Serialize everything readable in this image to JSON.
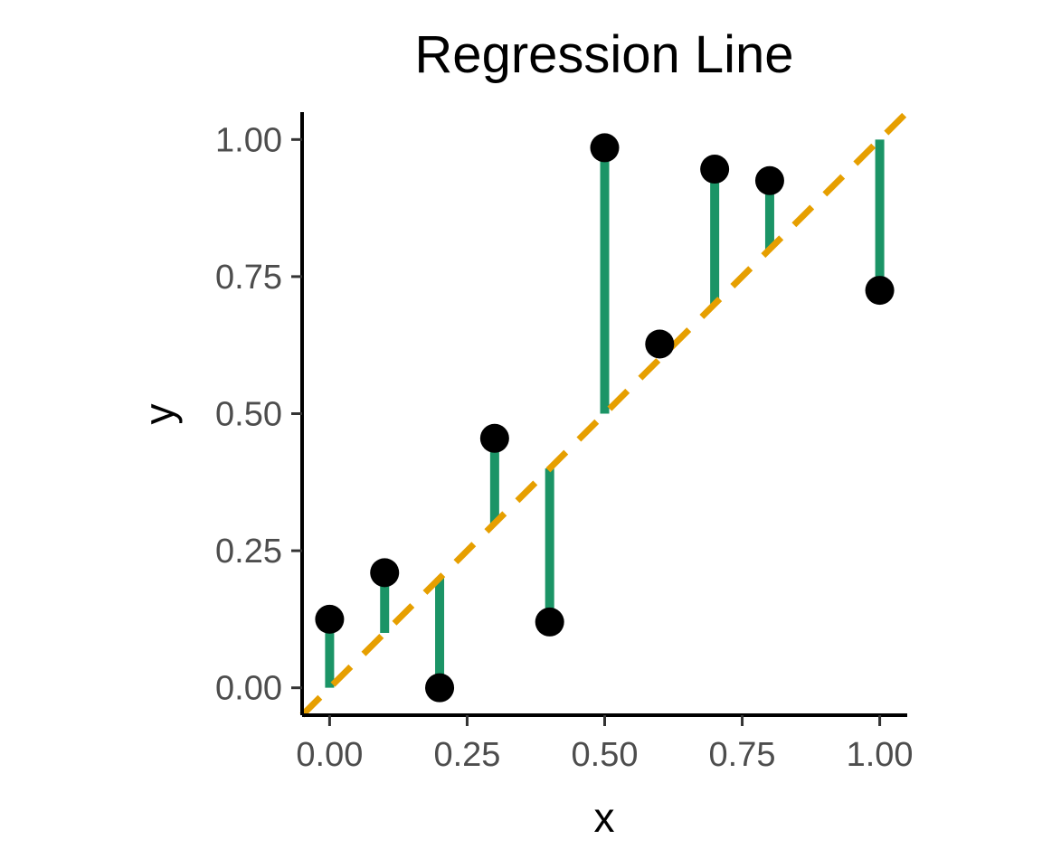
{
  "chart_data": {
    "type": "scatter",
    "title": "Regression Line",
    "xlabel": "x",
    "ylabel": "y",
    "xlim": [
      -0.05,
      1.05
    ],
    "ylim": [
      -0.05,
      1.05
    ],
    "x_ticks": [
      0.0,
      0.25,
      0.5,
      0.75,
      1.0
    ],
    "y_ticks": [
      0.0,
      0.25,
      0.5,
      0.75,
      1.0
    ],
    "x_tick_labels": [
      "0.00",
      "0.25",
      "0.50",
      "0.75",
      "1.00"
    ],
    "y_tick_labels": [
      "0.00",
      "0.25",
      "0.50",
      "0.75",
      "1.00"
    ],
    "grid": false,
    "points": {
      "x": [
        0.0,
        0.1,
        0.2,
        0.3,
        0.4,
        0.5,
        0.6,
        0.7,
        0.8,
        1.0
      ],
      "y": [
        0.125,
        0.21,
        0.0,
        0.455,
        0.12,
        0.985,
        0.627,
        0.946,
        0.925,
        0.725
      ],
      "color": "#000000"
    },
    "regression_line": {
      "slope": 1.0,
      "intercept": 0.0,
      "x_range": [
        -0.05,
        1.05
      ],
      "style": "dashed",
      "color": "#E69F00"
    },
    "residuals": {
      "x": [
        0.0,
        0.1,
        0.2,
        0.3,
        0.4,
        0.5,
        0.7,
        0.8,
        1.0
      ],
      "y_start": [
        0.0,
        0.1,
        0.2,
        0.3,
        0.4,
        0.5,
        0.7,
        0.8,
        1.0
      ],
      "y_end": [
        0.125,
        0.21,
        0.0,
        0.455,
        0.12,
        0.985,
        0.946,
        0.925,
        0.725
      ],
      "color": "#1B9466"
    }
  }
}
